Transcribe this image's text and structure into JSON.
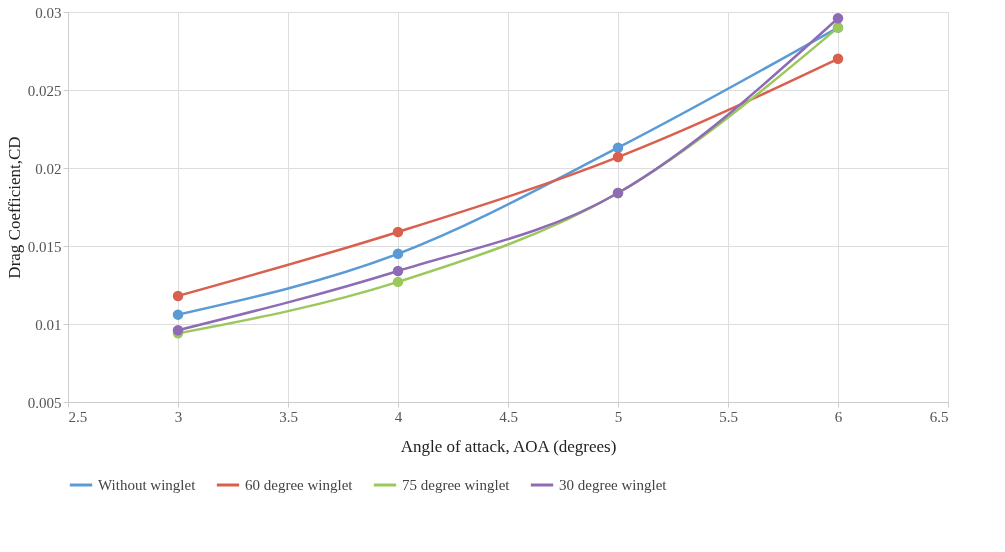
{
  "chart_data": {
    "type": "line",
    "xlabel": "Angle of attack, AOA (degrees)",
    "ylabel": "Drag Coefficient,CD",
    "x": [
      3,
      4,
      5,
      6
    ],
    "series": [
      {
        "name": "Without winglet",
        "color": "#5b9bd5",
        "values": [
          0.0106,
          0.0145,
          0.0213,
          0.029
        ]
      },
      {
        "name": "60 degree winglet",
        "color": "#d9604f",
        "values": [
          0.0118,
          0.0159,
          0.0207,
          0.027
        ]
      },
      {
        "name": "75 degree winglet",
        "color": "#9bc85a",
        "values": [
          0.0094,
          0.0127,
          0.0184,
          0.029
        ]
      },
      {
        "name": "30 degree winglet",
        "color": "#8e6bb5",
        "values": [
          0.0096,
          0.0134,
          0.0184,
          0.0296
        ]
      }
    ],
    "xlim": [
      2.5,
      6.5
    ],
    "xticks": [
      2.5,
      3,
      3.5,
      4,
      4.5,
      5,
      5.5,
      6,
      6.5
    ],
    "ylim": [
      0.005,
      0.03
    ],
    "yticks": [
      0.005,
      0.01,
      0.015,
      0.02,
      0.025,
      0.03
    ],
    "grid": true,
    "legend": "bottom",
    "marker": "circle",
    "line_style": "solid"
  }
}
